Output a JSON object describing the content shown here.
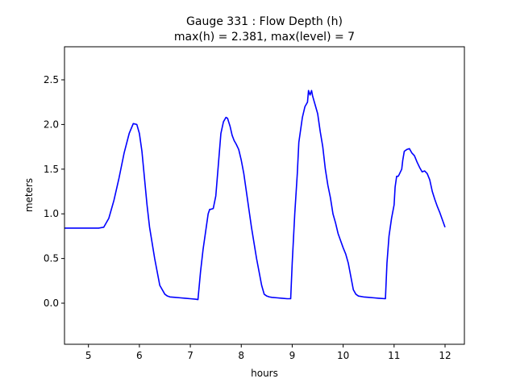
{
  "chart_data": {
    "type": "line",
    "title_line1": "Gauge 331 : Flow Depth (h)",
    "title_line2": "max(h) =   2.381,    max(level) = 7",
    "xlabel": "hours",
    "ylabel": "meters",
    "xlim": [
      4.53,
      12.38
    ],
    "ylim": [
      -0.46,
      2.87
    ],
    "xticks": [
      5,
      6,
      7,
      8,
      9,
      10,
      11,
      12
    ],
    "yticks": [
      0.0,
      0.5,
      1.0,
      1.5,
      2.0,
      2.5
    ],
    "ytick_labels": [
      "0.0",
      "0.5",
      "1.0",
      "1.5",
      "2.0",
      "2.5"
    ],
    "grid": false,
    "series": [
      {
        "color": "#0000ff",
        "x": [
          4.53,
          4.8,
          5.0,
          5.2,
          5.3,
          5.4,
          5.5,
          5.6,
          5.7,
          5.8,
          5.88,
          5.95,
          6.0,
          6.05,
          6.1,
          6.15,
          6.2,
          6.3,
          6.4,
          6.5,
          6.55,
          6.6,
          6.7,
          6.8,
          6.9,
          7.0,
          7.1,
          7.15,
          7.2,
          7.25,
          7.3,
          7.35,
          7.38,
          7.4,
          7.45,
          7.5,
          7.55,
          7.6,
          7.65,
          7.7,
          7.73,
          7.78,
          7.82,
          7.86,
          7.9,
          7.95,
          8.0,
          8.05,
          8.1,
          8.15,
          8.2,
          8.3,
          8.4,
          8.45,
          8.5,
          8.55,
          8.6,
          8.7,
          8.8,
          8.9,
          8.97,
          9.0,
          9.05,
          9.1,
          9.13,
          9.2,
          9.25,
          9.3,
          9.32,
          9.35,
          9.38,
          9.4,
          9.45,
          9.5,
          9.55,
          9.6,
          9.65,
          9.7,
          9.75,
          9.8,
          9.85,
          9.9,
          9.95,
          10.0,
          10.05,
          10.1,
          10.15,
          10.2,
          10.25,
          10.3,
          10.4,
          10.5,
          10.6,
          10.7,
          10.83,
          10.86,
          10.9,
          10.95,
          11.0,
          11.02,
          11.05,
          11.08,
          11.1,
          11.15,
          11.17,
          11.2,
          11.25,
          11.3,
          11.35,
          11.4,
          11.45,
          11.5,
          11.55,
          11.6,
          11.65,
          11.7,
          11.75,
          11.8,
          11.85,
          11.9,
          11.95,
          12.0
        ],
        "y": [
          0.84,
          0.84,
          0.84,
          0.84,
          0.85,
          0.95,
          1.15,
          1.4,
          1.68,
          1.9,
          2.01,
          2.0,
          1.9,
          1.7,
          1.4,
          1.1,
          0.85,
          0.5,
          0.2,
          0.1,
          0.08,
          0.07,
          0.065,
          0.06,
          0.055,
          0.05,
          0.045,
          0.04,
          0.35,
          0.6,
          0.8,
          1.0,
          1.05,
          1.05,
          1.06,
          1.2,
          1.55,
          1.9,
          2.03,
          2.08,
          2.07,
          1.98,
          1.88,
          1.82,
          1.78,
          1.72,
          1.6,
          1.45,
          1.25,
          1.05,
          0.85,
          0.5,
          0.2,
          0.1,
          0.08,
          0.07,
          0.065,
          0.06,
          0.055,
          0.05,
          0.05,
          0.45,
          1.0,
          1.45,
          1.8,
          2.08,
          2.2,
          2.25,
          2.38,
          2.33,
          2.38,
          2.32,
          2.22,
          2.12,
          1.92,
          1.75,
          1.5,
          1.32,
          1.18,
          1.0,
          0.9,
          0.78,
          0.7,
          0.62,
          0.55,
          0.45,
          0.3,
          0.15,
          0.1,
          0.08,
          0.07,
          0.065,
          0.06,
          0.055,
          0.05,
          0.45,
          0.75,
          0.95,
          1.1,
          1.3,
          1.42,
          1.42,
          1.44,
          1.5,
          1.6,
          1.7,
          1.72,
          1.73,
          1.68,
          1.65,
          1.58,
          1.52,
          1.47,
          1.48,
          1.45,
          1.38,
          1.25,
          1.16,
          1.08,
          1.01,
          0.93,
          0.85
        ]
      }
    ]
  }
}
